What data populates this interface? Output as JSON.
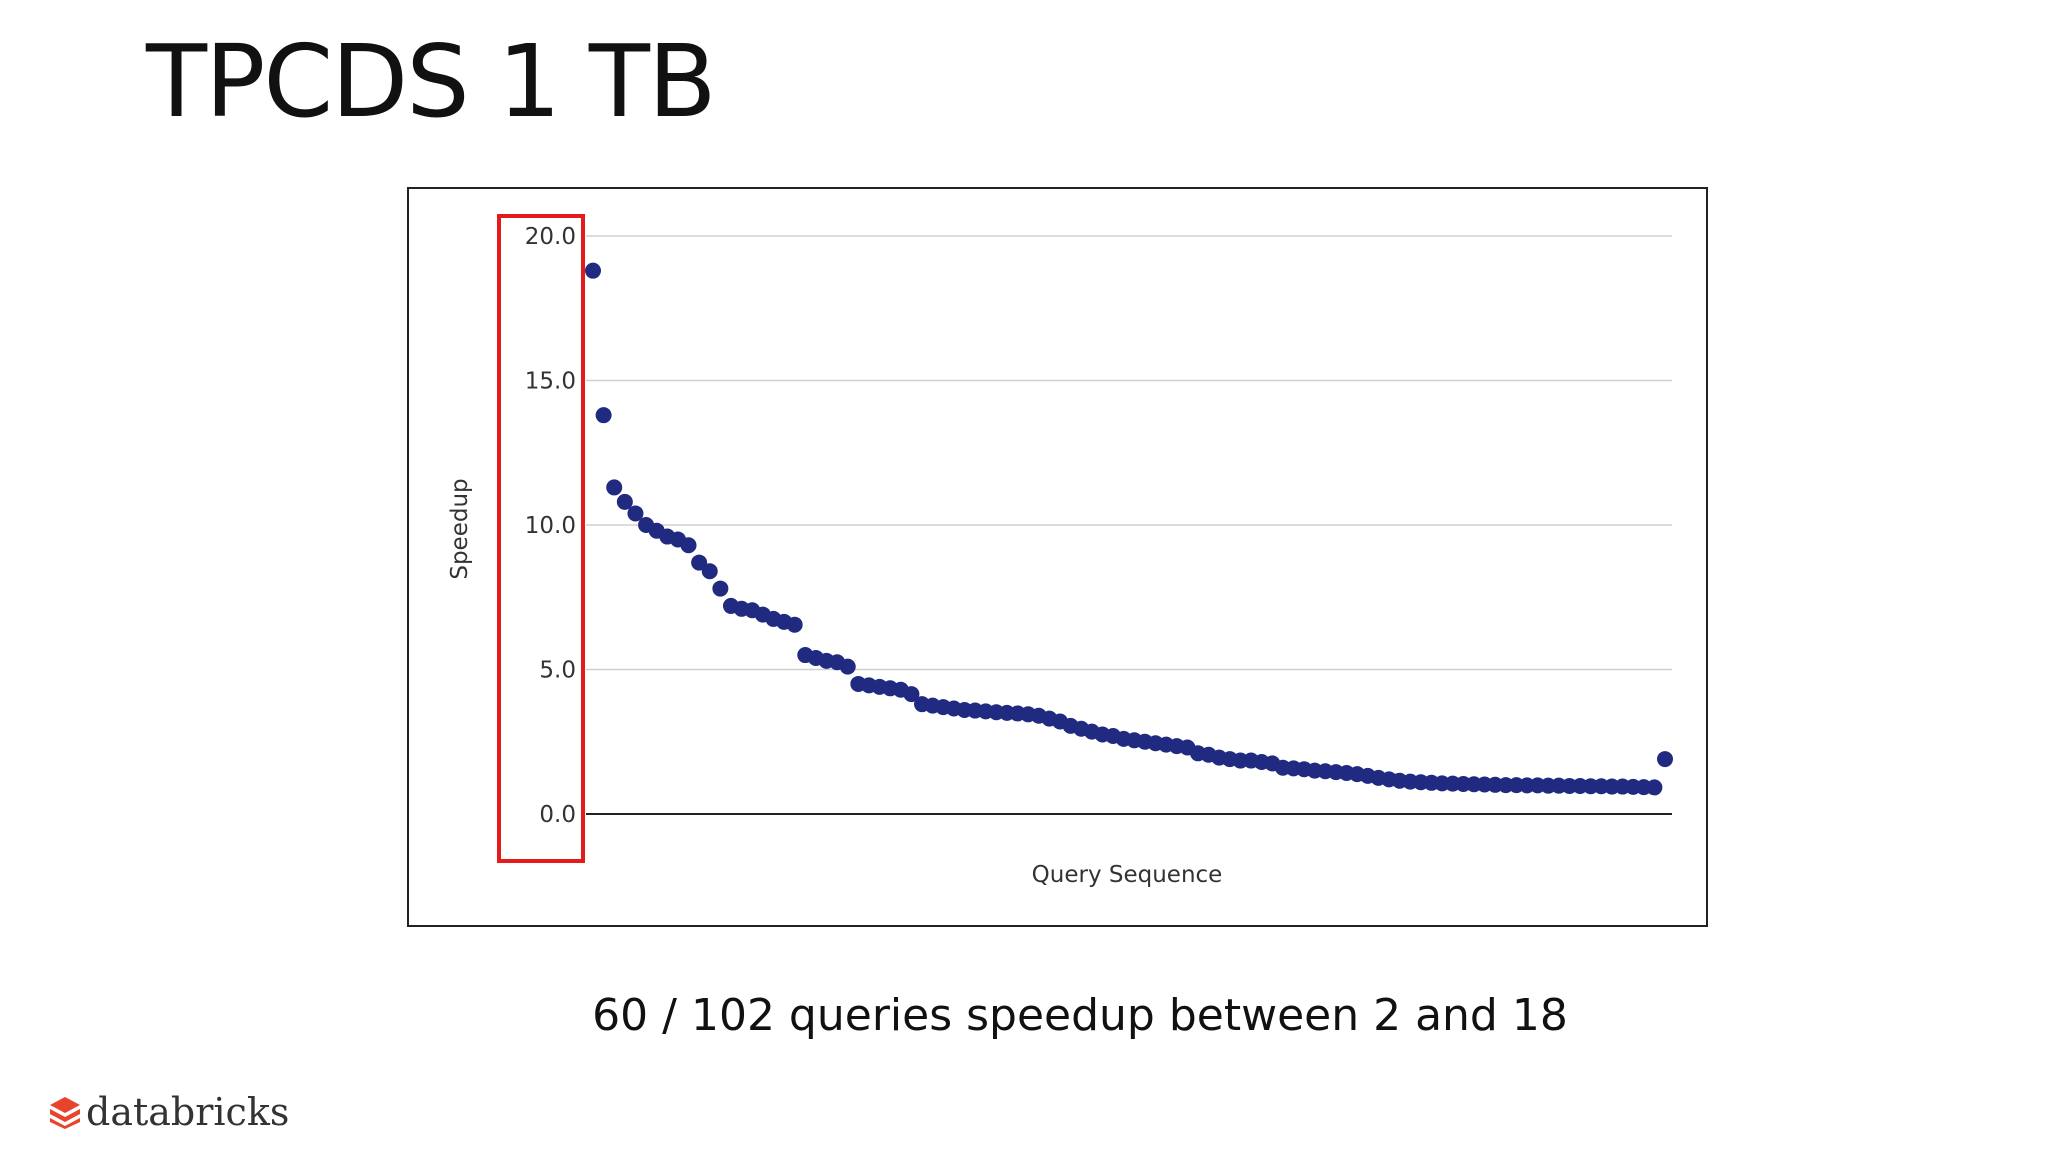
{
  "slide": {
    "title": "TPCDS 1 TB",
    "caption": "60 / 102 queries speedup between 2 and 18",
    "brand": "databricks"
  },
  "colors": {
    "points": "#1f2a80",
    "highlight_box": "#e31b1b",
    "gridline": "#d0d0d0",
    "axis": "#222222",
    "brand_red": "#e8432d"
  },
  "chart_data": {
    "type": "scatter",
    "xlabel": "Query Sequence",
    "ylabel": "Speedup",
    "ylim": [
      0,
      20
    ],
    "yticks": [
      "0.0",
      "5.0",
      "10.0",
      "15.0",
      "20.0"
    ],
    "grid": true,
    "highlight": "y-axis tick labels boxed in red",
    "x": [
      1,
      2,
      3,
      4,
      5,
      6,
      7,
      8,
      9,
      10,
      11,
      12,
      13,
      14,
      15,
      16,
      17,
      18,
      19,
      20,
      21,
      22,
      23,
      24,
      25,
      26,
      27,
      28,
      29,
      30,
      31,
      32,
      33,
      34,
      35,
      36,
      37,
      38,
      39,
      40,
      41,
      42,
      43,
      44,
      45,
      46,
      47,
      48,
      49,
      50,
      51,
      52,
      53,
      54,
      55,
      56,
      57,
      58,
      59,
      60,
      61,
      62,
      63,
      64,
      65,
      66,
      67,
      68,
      69,
      70,
      71,
      72,
      73,
      74,
      75,
      76,
      77,
      78,
      79,
      80,
      81,
      82,
      83,
      84,
      85,
      86,
      87,
      88,
      89,
      90,
      91,
      92,
      93,
      94,
      95,
      96,
      97,
      98,
      99,
      100,
      101,
      102
    ],
    "y": [
      18.8,
      13.8,
      11.3,
      10.8,
      10.4,
      10.0,
      9.8,
      9.6,
      9.5,
      9.3,
      8.7,
      8.4,
      7.8,
      7.2,
      7.1,
      7.05,
      6.9,
      6.75,
      6.65,
      6.55,
      5.5,
      5.4,
      5.3,
      5.25,
      5.1,
      4.5,
      4.45,
      4.4,
      4.35,
      4.3,
      4.15,
      3.8,
      3.75,
      3.7,
      3.65,
      3.6,
      3.58,
      3.55,
      3.52,
      3.5,
      3.48,
      3.45,
      3.4,
      3.3,
      3.2,
      3.05,
      2.95,
      2.85,
      2.75,
      2.7,
      2.6,
      2.55,
      2.5,
      2.45,
      2.4,
      2.35,
      2.3,
      2.1,
      2.05,
      1.95,
      1.9,
      1.85,
      1.85,
      1.8,
      1.75,
      1.6,
      1.58,
      1.55,
      1.5,
      1.48,
      1.45,
      1.42,
      1.38,
      1.32,
      1.25,
      1.2,
      1.15,
      1.12,
      1.1,
      1.08,
      1.06,
      1.05,
      1.04,
      1.03,
      1.02,
      1.01,
      1.0,
      1.0,
      0.99,
      0.99,
      0.98,
      0.98,
      0.97,
      0.97,
      0.96,
      0.96,
      0.95,
      0.95,
      0.94,
      0.93,
      0.92,
      1.9
    ]
  }
}
